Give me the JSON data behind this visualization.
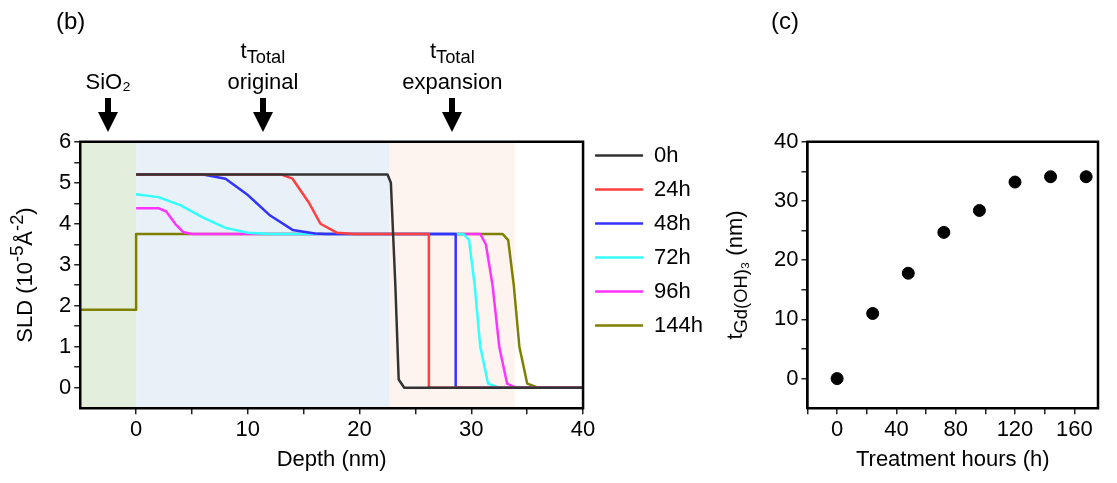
{
  "chart_data": [
    {
      "type": "line",
      "title": "(b)",
      "xlabel": "Depth (nm)",
      "ylabel": "SLD (10$^{-5}$Å$^{-2}$)",
      "xlim": [
        -5,
        40
      ],
      "xticks": [
        0,
        {
          "value": 5,
          "label": null
        },
        10,
        {
          "value": 15,
          "label": null
        },
        20,
        {
          "value": 25,
          "label": null
        },
        30,
        {
          "value": 35,
          "label": null
        },
        40
      ],
      "ylim": [
        -0.5,
        6
      ],
      "yticks": [
        0,
        {
          "value": 0.5,
          "label": null
        },
        1,
        {
          "value": 1.5,
          "label": null
        },
        2,
        {
          "value": 2.5,
          "label": null
        },
        3,
        {
          "value": 3.5,
          "label": null
        },
        4,
        {
          "value": 4.5,
          "label": null
        },
        5,
        {
          "value": 5.5,
          "label": null
        },
        6
      ],
      "grid": false,
      "legend": "right",
      "bands": [
        {
          "axis": "x",
          "from": -5,
          "to": 0,
          "label": "SiO₂",
          "color": "#e3efdc"
        },
        {
          "axis": "x",
          "from": 0,
          "to": 22.7,
          "label": "t$_{Total}$\noriginal",
          "color": "#e8f0f8"
        },
        {
          "axis": "x",
          "from": 22.7,
          "to": 33.9,
          "label": "t$_{Total}$\nexpansion",
          "color": "#fdf3ef"
        }
      ],
      "series": [
        {
          "name": "0h",
          "color": "#333333",
          "x": [
            0,
            22.5,
            22.8,
            23.2,
            23.5,
            24,
            40
          ],
          "values": [
            5.2,
            5.2,
            5.0,
            2.5,
            0.2,
            0,
            0
          ]
        },
        {
          "name": "24h",
          "color": "#ff4040",
          "x": [
            0,
            13,
            14,
            15.5,
            16.5,
            18,
            19.5,
            26.2,
            26.2,
            40
          ],
          "values": [
            5.2,
            5.2,
            5.1,
            4.5,
            4.0,
            3.78,
            3.75,
            3.75,
            0,
            0
          ]
        },
        {
          "name": "48h",
          "color": "#3333ff",
          "x": [
            0,
            6,
            8,
            10,
            12,
            14,
            16,
            17,
            28.6,
            28.6,
            40
          ],
          "values": [
            5.2,
            5.2,
            5.1,
            4.7,
            4.2,
            3.85,
            3.76,
            3.75,
            3.75,
            0,
            0
          ]
        },
        {
          "name": "72h",
          "color": "#33ffff",
          "x": [
            0,
            2,
            4,
            6,
            8,
            10,
            12,
            29.3,
            29.8,
            30.3,
            30.8,
            31.5,
            32.5,
            40
          ],
          "values": [
            4.72,
            4.65,
            4.45,
            4.15,
            3.9,
            3.78,
            3.75,
            3.75,
            3.6,
            2.5,
            1,
            0.1,
            0,
            0
          ]
        },
        {
          "name": "96h",
          "color": "#ff33ff",
          "x": [
            0,
            2,
            2.7,
            3.5,
            4.2,
            5,
            30.8,
            31.3,
            31.9,
            32.5,
            33.2,
            34,
            40
          ],
          "values": [
            4.38,
            4.38,
            4.3,
            4.0,
            3.8,
            3.75,
            3.75,
            3.5,
            2.5,
            1,
            0.1,
            0,
            0
          ]
        },
        {
          "name": "144h",
          "color": "#808000",
          "x": [
            -5,
            0,
            0,
            32.8,
            33.3,
            33.8,
            34.3,
            35,
            36,
            40
          ],
          "values": [
            1.9,
            1.9,
            3.75,
            3.75,
            3.6,
            2.5,
            1,
            0.1,
            0,
            0
          ]
        }
      ]
    },
    {
      "type": "scatter",
      "title": "(c)",
      "xlabel": "Treatment hours (h)",
      "ylabel": "t$_{Gd(OH)₃}$ (nm)",
      "xlim": [
        -20,
        176
      ],
      "xticks": [
        {
          "value": -20,
          "label": null
        },
        0,
        {
          "value": 20,
          "label": null
        },
        40,
        {
          "value": 60,
          "label": null
        },
        80,
        {
          "value": 100,
          "label": null
        },
        120,
        {
          "value": 140,
          "label": null
        },
        160
      ],
      "ylim": [
        -5,
        40
      ],
      "yticks": [
        0,
        {
          "value": 5,
          "label": null
        },
        10,
        {
          "value": 15,
          "label": null
        },
        20,
        {
          "value": 25,
          "label": null
        },
        30,
        {
          "value": 35,
          "label": null
        },
        40
      ],
      "grid": false,
      "marker": "circle",
      "series": [
        {
          "color": "#000000",
          "x": [
            0,
            24,
            48,
            72,
            96,
            120,
            144,
            168
          ],
          "values": [
            0,
            11,
            17.8,
            24.7,
            28.4,
            33.2,
            34.1,
            34.1
          ]
        }
      ]
    }
  ]
}
